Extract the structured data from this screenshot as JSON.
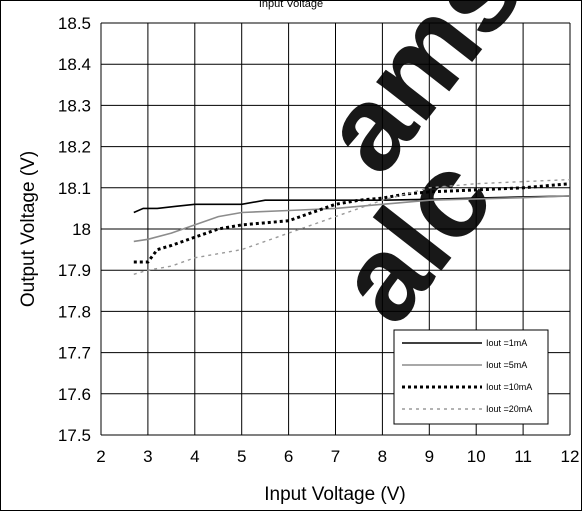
{
  "top_caption": "Input Voltage",
  "chart_data": {
    "type": "line",
    "title": "",
    "xlabel": "Input Voltage (V)",
    "ylabel": "Output Voltage (V)",
    "xlim": [
      2,
      12
    ],
    "ylim": [
      17.5,
      18.5
    ],
    "x_ticks": [
      "2",
      "3",
      "4",
      "5",
      "6",
      "7",
      "8",
      "9",
      "10",
      "11",
      "12"
    ],
    "y_ticks": [
      "17.5",
      "17.6",
      "17.7",
      "17.8",
      "17.9",
      "18",
      "18.1",
      "18.2",
      "18.3",
      "18.4",
      "18.5"
    ],
    "grid": true,
    "legend_position": "bottom-right",
    "series": [
      {
        "name": "Iout =1mA",
        "color": "#000000",
        "style": "solid",
        "points": [
          [
            2.7,
            18.04
          ],
          [
            2.9,
            18.05
          ],
          [
            3.2,
            18.05
          ],
          [
            3.6,
            18.055
          ],
          [
            4.0,
            18.06
          ],
          [
            4.5,
            18.06
          ],
          [
            5.0,
            18.06
          ],
          [
            5.5,
            18.07
          ],
          [
            6.0,
            18.07
          ],
          [
            7.0,
            18.07
          ],
          [
            8.0,
            18.07
          ],
          [
            9.0,
            18.072
          ],
          [
            10.0,
            18.075
          ],
          [
            11.0,
            18.078
          ],
          [
            12.0,
            18.08
          ]
        ]
      },
      {
        "name": "Iout =5mA",
        "color": "#8c8c8c",
        "style": "solid",
        "points": [
          [
            2.7,
            17.97
          ],
          [
            3.0,
            17.975
          ],
          [
            3.5,
            17.99
          ],
          [
            4.0,
            18.01
          ],
          [
            4.5,
            18.03
          ],
          [
            5.0,
            18.04
          ],
          [
            6.0,
            18.045
          ],
          [
            7.0,
            18.05
          ],
          [
            8.0,
            18.06
          ],
          [
            9.0,
            18.07
          ],
          [
            10.0,
            18.073
          ],
          [
            11.0,
            18.076
          ],
          [
            12.0,
            18.08
          ]
        ]
      },
      {
        "name": "Iout =10mA",
        "color": "#000000",
        "style": "dotted",
        "points": [
          [
            2.7,
            17.92
          ],
          [
            3.0,
            17.92
          ],
          [
            3.2,
            17.95
          ],
          [
            3.5,
            17.96
          ],
          [
            4.0,
            17.98
          ],
          [
            4.5,
            18.0
          ],
          [
            5.0,
            18.01
          ],
          [
            5.5,
            18.015
          ],
          [
            6.0,
            18.02
          ],
          [
            6.5,
            18.04
          ],
          [
            7.0,
            18.06
          ],
          [
            7.5,
            18.07
          ],
          [
            8.0,
            18.075
          ],
          [
            8.5,
            18.085
          ],
          [
            9.0,
            18.09
          ],
          [
            10.0,
            18.095
          ],
          [
            11.0,
            18.1
          ],
          [
            12.0,
            18.11
          ]
        ]
      },
      {
        "name": "Iout =20mA",
        "color": "#9a9a9a",
        "style": "dashed",
        "points": [
          [
            2.7,
            17.89
          ],
          [
            3.0,
            17.9
          ],
          [
            3.5,
            17.91
          ],
          [
            4.0,
            17.93
          ],
          [
            4.5,
            17.94
          ],
          [
            5.0,
            17.95
          ],
          [
            5.5,
            17.97
          ],
          [
            6.0,
            17.99
          ],
          [
            6.5,
            18.01
          ],
          [
            7.0,
            18.03
          ],
          [
            7.5,
            18.05
          ],
          [
            8.0,
            18.07
          ],
          [
            8.5,
            18.085
          ],
          [
            9.0,
            18.1
          ],
          [
            10.0,
            18.11
          ],
          [
            11.0,
            18.115
          ],
          [
            12.0,
            18.12
          ]
        ]
      }
    ]
  }
}
